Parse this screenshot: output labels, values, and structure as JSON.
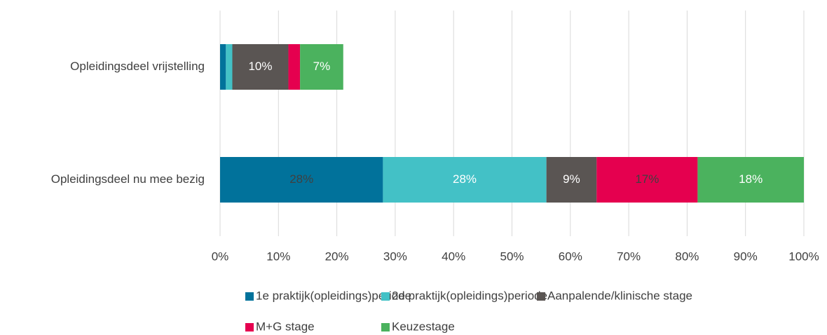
{
  "chart_data": {
    "type": "stacked_bar_horizontal",
    "categories": [
      "Opleidingsdeel vrijstelling",
      "Opleidingsdeel nu mee bezig"
    ],
    "series": [
      {
        "name": "1e praktijk(opleidings)periode",
        "color": "#01729b",
        "values": [
          1.0,
          27.9
        ],
        "value_labels": [
          null,
          "28%"
        ]
      },
      {
        "name": "2e praktijk(opleidings)periode",
        "color": "#43c1c6",
        "values": [
          1.1,
          28.0
        ],
        "value_labels": [
          null,
          "28%"
        ]
      },
      {
        "name": "Aanpalende/klinische stage",
        "color": "#5a5553",
        "values": [
          9.6,
          8.6
        ],
        "value_labels": [
          "10%",
          "9%"
        ]
      },
      {
        "name": "M+G stage",
        "color": "#e5004f",
        "values": [
          2.0,
          17.3
        ],
        "value_labels": [
          null,
          "17%"
        ]
      },
      {
        "name": "Keuzestage",
        "color": "#4bb25e",
        "values": [
          7.4,
          18.2
        ],
        "value_labels": [
          "7%",
          "18%"
        ]
      }
    ],
    "xlim": [
      0,
      100
    ],
    "xticks": [
      {
        "value": 0,
        "label": "0%"
      },
      {
        "value": 10,
        "label": "10%"
      },
      {
        "value": 20,
        "label": "20%"
      },
      {
        "value": 30,
        "label": "30%"
      },
      {
        "value": 40,
        "label": "40%"
      },
      {
        "value": 50,
        "label": "50%"
      },
      {
        "value": 60,
        "label": "60%"
      },
      {
        "value": 70,
        "label": "70%"
      },
      {
        "value": 80,
        "label": "80%"
      },
      {
        "value": 90,
        "label": "90%"
      },
      {
        "value": 100,
        "label": "100%"
      }
    ],
    "grid": true,
    "legend": "bottom"
  }
}
